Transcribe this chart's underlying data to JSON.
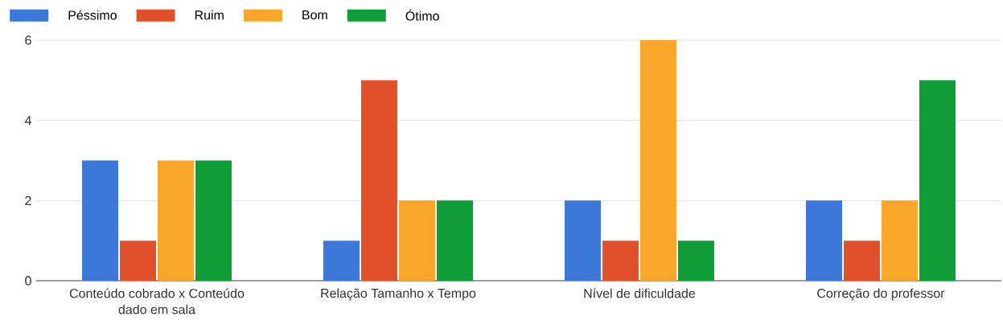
{
  "chart_data": {
    "type": "bar",
    "categories": [
      "Conteúdo cobrado x Conteúdo dado em sala",
      "Relação Tamanho x Tempo",
      "Nível de dificuldade",
      "Correção do professor"
    ],
    "series": [
      {
        "name": "Péssimo",
        "color": "#3c78d8",
        "values": [
          3,
          1,
          2,
          2
        ]
      },
      {
        "name": "Ruim",
        "color": "#e0502a",
        "values": [
          1,
          5,
          1,
          1
        ]
      },
      {
        "name": "Bom",
        "color": "#f9a72b",
        "values": [
          3,
          2,
          6,
          2
        ]
      },
      {
        "name": "Ótimo",
        "color": "#0f9d38",
        "values": [
          3,
          2,
          1,
          5
        ]
      }
    ],
    "ylim": [
      0,
      6
    ],
    "yticks": [
      0,
      2,
      4,
      6
    ],
    "grid": "y",
    "legend": "top left"
  }
}
